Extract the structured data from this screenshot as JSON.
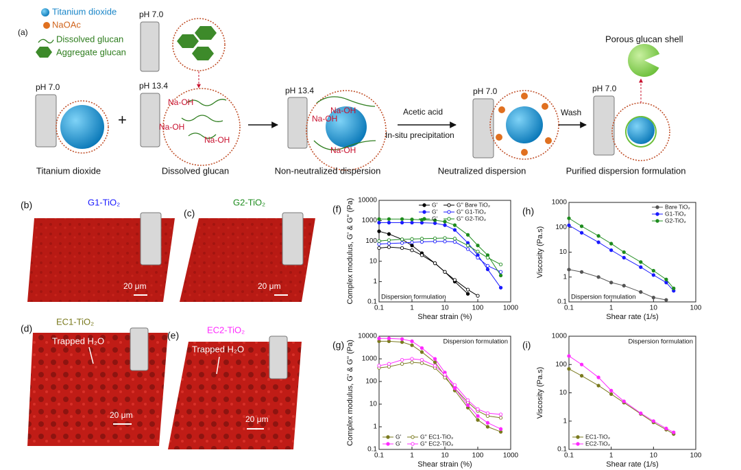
{
  "figure": {
    "panel_a": {
      "label": "(a)",
      "legend": [
        "Titanium dioxide",
        "NaOAc",
        "Dissolved glucan",
        "Aggregate glucan"
      ],
      "ph_labels": [
        "pH 7.0",
        "pH 7.0",
        "pH 13.4",
        "pH 13.4",
        "pH 7.0",
        "pH 7.0"
      ],
      "naoh": [
        "Na-OH",
        "Na-OH",
        "Na-OH",
        "Na-OH",
        "Na-OH",
        "Na-OH"
      ],
      "steps": [
        "Acetic acid",
        "In-situ precipitation",
        "Wash"
      ],
      "shell": "Porous glucan shell",
      "captions": [
        "Titanium dioxide",
        "Dissolved glucan",
        "Non-neutralized dispersion",
        "Neutralized dispersion",
        "Purified dispersion formulation"
      ]
    },
    "images": [
      {
        "label": "(b)",
        "sample": "G1-TiO₂",
        "scale": "20 μm"
      },
      {
        "label": "(c)",
        "sample": "G2-TiO₂",
        "scale": "20 μm"
      },
      {
        "label": "(d)",
        "sample": "EC1-TiO₂",
        "scale": "20 μm",
        "note": "Trapped H₂O"
      },
      {
        "label": "(e)",
        "sample": "EC2-TiO₂",
        "scale": "20 μm",
        "note": "Trapped H₂O"
      }
    ]
  },
  "chart_data": [
    {
      "type": "line",
      "label": "(f)",
      "xlabel": "Shear strain (%)",
      "ylabel": "Complex modulus, G' & G'' (Pa)",
      "annotation": "Dispersion formulation",
      "log_scale": true,
      "legend": "upper right",
      "xlim": [
        0.1,
        1000
      ],
      "ylim": [
        0.1,
        10000
      ],
      "xticks": [
        0.1,
        1,
        10,
        100,
        1000
      ],
      "yticks": [
        0.1,
        1,
        10,
        100,
        1000,
        10000
      ],
      "x": [
        0.1,
        0.2,
        0.5,
        1,
        2,
        5,
        10,
        20,
        50,
        100,
        200,
        500
      ],
      "series": [
        {
          "name": "G'",
          "color": "#000000",
          "marker": "filled",
          "values": [
            300,
            220,
            120,
            60,
            25,
            8,
            3,
            1,
            0.25,
            null,
            null,
            null
          ]
        },
        {
          "name": "G'' Bare TiO₂",
          "color": "#000000",
          "marker": "open",
          "values": [
            45,
            50,
            45,
            35,
            20,
            8,
            3,
            1.2,
            0.4,
            0.2,
            null,
            null
          ]
        },
        {
          "name": "G'",
          "color": "#1a1aff",
          "marker": "filled",
          "values": [
            800,
            800,
            800,
            800,
            790,
            750,
            600,
            350,
            80,
            20,
            4,
            0.5
          ]
        },
        {
          "name": "G'' G1-TiO₂",
          "color": "#1a1aff",
          "marker": "open",
          "values": [
            70,
            75,
            80,
            85,
            90,
            95,
            95,
            90,
            40,
            15,
            6,
            3
          ]
        },
        {
          "name": "G'",
          "color": "#1e8c1e",
          "marker": "filled",
          "values": [
            1200,
            1200,
            1200,
            1150,
            1100,
            1050,
            900,
            600,
            200,
            60,
            20,
            2
          ]
        },
        {
          "name": "G'' G2-TiO₂",
          "color": "#1e8c1e",
          "marker": "open",
          "values": [
            100,
            110,
            120,
            125,
            130,
            135,
            140,
            130,
            60,
            30,
            15,
            7
          ]
        }
      ]
    },
    {
      "type": "line",
      "label": "(g)",
      "xlabel": "Shear strain (%)",
      "ylabel": "Complex modulus, G' & G'' (Pa)",
      "annotation": "Dispersion formulation",
      "log_scale": true,
      "legend": "lower left",
      "xlim": [
        0.1,
        1000
      ],
      "ylim": [
        0.1,
        10000
      ],
      "xticks": [
        0.1,
        1,
        10,
        100,
        1000
      ],
      "yticks": [
        0.1,
        1,
        10,
        100,
        1000,
        10000
      ],
      "x": [
        0.1,
        0.2,
        0.5,
        1,
        2,
        5,
        10,
        20,
        50,
        100,
        200,
        500
      ],
      "series": [
        {
          "name": "G'",
          "color": "#7a7a1e",
          "marker": "filled",
          "values": [
            6000,
            6000,
            5500,
            4000,
            2000,
            700,
            180,
            40,
            7,
            2,
            1,
            0.6
          ]
        },
        {
          "name": "G'' EC1-TiO₂",
          "color": "#7a7a1e",
          "marker": "open",
          "values": [
            400,
            450,
            600,
            700,
            650,
            400,
            150,
            50,
            12,
            5,
            3,
            2.5
          ]
        },
        {
          "name": "G'",
          "color": "#ff2aff",
          "marker": "filled",
          "values": [
            8000,
            8000,
            7500,
            6000,
            3000,
            1000,
            250,
            50,
            9,
            3,
            1.5,
            0.8
          ]
        },
        {
          "name": "G'' EC2-TiO₂",
          "color": "#ff2aff",
          "marker": "open",
          "values": [
            500,
            600,
            900,
            1000,
            900,
            500,
            200,
            70,
            15,
            6,
            4,
            3.5
          ]
        }
      ]
    },
    {
      "type": "line",
      "label": "(h)",
      "xlabel": "Shear rate (1/s)",
      "ylabel": "Viscosity (Pa.s)",
      "annotation": "Dispersion formulation",
      "log_scale": true,
      "legend": "upper right",
      "xlim": [
        0.1,
        100
      ],
      "ylim": [
        0.1,
        1000
      ],
      "xticks": [
        0.1,
        1,
        10,
        100
      ],
      "yticks": [
        0.1,
        1,
        10,
        100,
        1000
      ],
      "x": [
        0.1,
        0.2,
        0.5,
        1,
        2,
        5,
        10,
        20,
        30
      ],
      "series": [
        {
          "name": "Bare TiO₂",
          "color": "#555555",
          "marker": "filled",
          "values": [
            2,
            1.6,
            1,
            0.6,
            0.45,
            0.25,
            0.15,
            0.12,
            null
          ]
        },
        {
          "name": "G1-TiO₂",
          "color": "#1a1aff",
          "marker": "filled",
          "values": [
            120,
            60,
            25,
            12,
            6,
            2.5,
            1.2,
            0.6,
            0.28
          ]
        },
        {
          "name": "G2-TiO₂",
          "color": "#1e8c1e",
          "marker": "filled",
          "values": [
            230,
            110,
            45,
            22,
            10,
            4,
            1.8,
            0.8,
            0.35
          ]
        }
      ]
    },
    {
      "type": "line",
      "label": "(i)",
      "xlabel": "Shear rate (1/s)",
      "ylabel": "Viscosity (Pa.s)",
      "annotation": "Dispersion formulation",
      "log_scale": true,
      "legend": "lower left",
      "xlim": [
        0.1,
        100
      ],
      "ylim": [
        0.1,
        1000
      ],
      "xticks": [
        0.1,
        1,
        10,
        100
      ],
      "yticks": [
        0.1,
        1,
        10,
        100,
        1000
      ],
      "x": [
        0.1,
        0.2,
        0.5,
        1,
        2,
        5,
        10,
        20,
        30
      ],
      "series": [
        {
          "name": "EC1-TiO₂",
          "color": "#7a7a1e",
          "marker": "filled",
          "values": [
            70,
            40,
            18,
            9,
            4.5,
            1.8,
            0.9,
            0.5,
            0.35
          ]
        },
        {
          "name": "EC2-TiO₂",
          "color": "#ff2aff",
          "marker": "filled",
          "values": [
            200,
            100,
            35,
            12,
            5,
            1.9,
            1,
            0.55,
            0.4
          ]
        }
      ]
    }
  ]
}
